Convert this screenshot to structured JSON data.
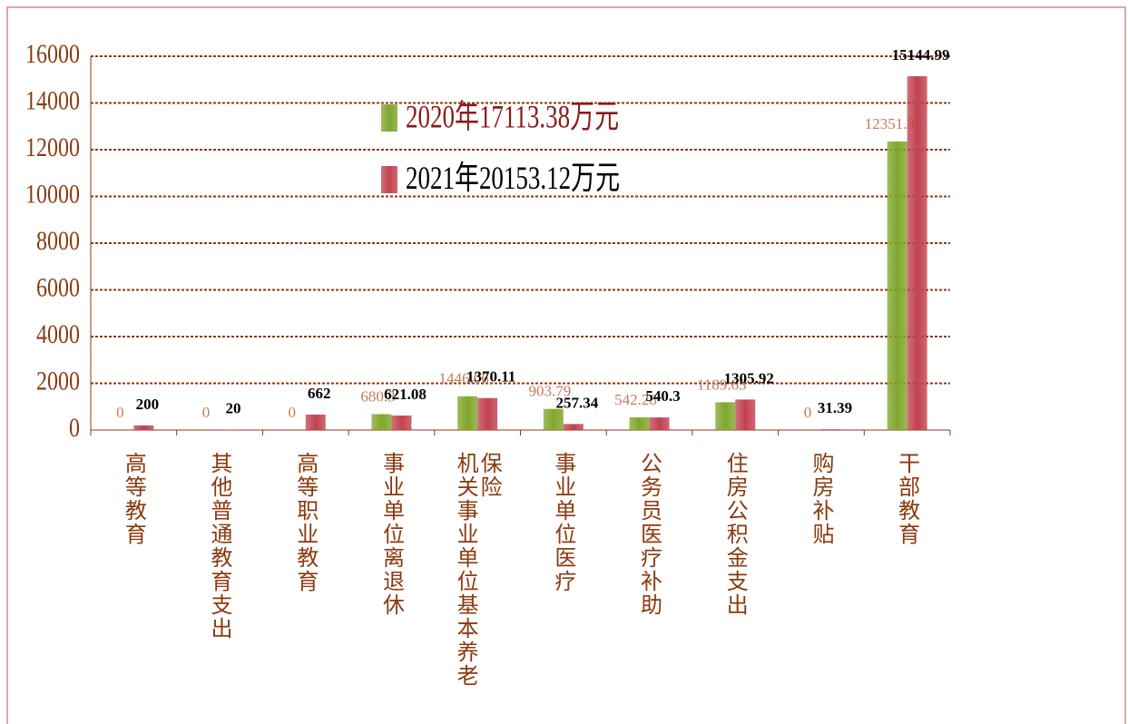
{
  "chart_data": {
    "type": "bar",
    "categories": [
      "高等教育",
      "其他普通教育支出",
      "高等职业教育",
      "事业单位离退休",
      "机关事业单位基本养老保险",
      "事业单位医疗",
      "公务员医疗补助",
      "住房公积金支出",
      "购房补贴",
      "干部教育"
    ],
    "series": [
      {
        "name": "2020年17113.38万元",
        "color": "#7fa62c",
        "values": [
          0,
          0,
          0,
          680.3,
          1446.06,
          903.79,
          542.28,
          1189.63,
          0,
          12351.32
        ]
      },
      {
        "name": "2021年20153.12万元",
        "color": "#c2424f",
        "values": [
          200,
          20,
          662,
          621.08,
          1370.11,
          257.34,
          540.3,
          1305.92,
          31.39,
          15144.99
        ]
      }
    ],
    "ylim": [
      0,
      16000
    ],
    "yticks": [
      0,
      2000,
      4000,
      6000,
      8000,
      10000,
      12000,
      14000,
      16000
    ],
    "grid": true,
    "legend": "top"
  }
}
